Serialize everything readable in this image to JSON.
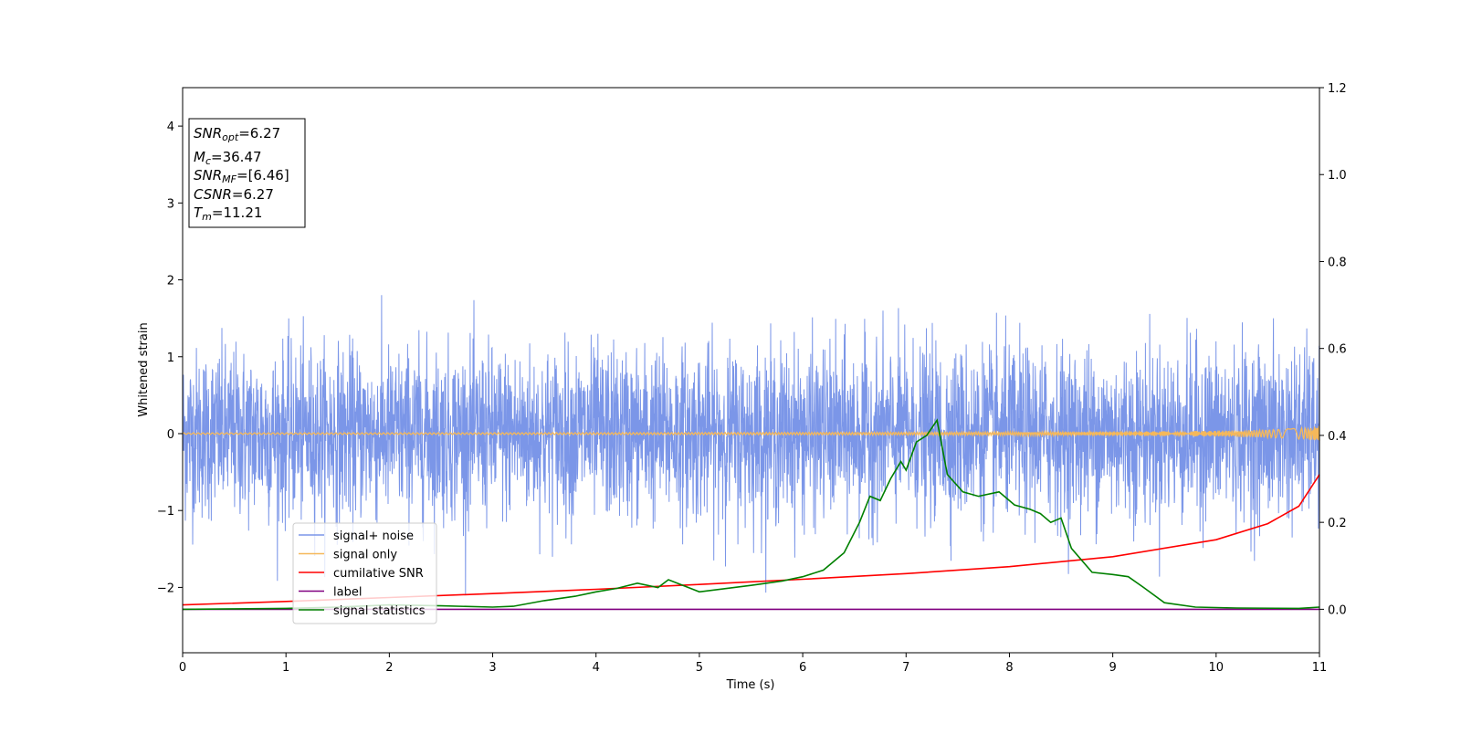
{
  "chart_data": {
    "type": "line",
    "xlabel": "Time (s)",
    "ylabel": "Whitened strain",
    "xlim": [
      0,
      11
    ],
    "ylim": [
      -2.85,
      4.5
    ],
    "y2lim": [
      -0.1,
      1.2
    ],
    "grid": false,
    "legend_position": "lower-left",
    "x_ticks": [
      "0",
      "1",
      "2",
      "3",
      "4",
      "5",
      "6",
      "7",
      "8",
      "9",
      "10",
      "11"
    ],
    "y_ticks": [
      {
        "value": -2,
        "label": "−2"
      },
      {
        "value": -1,
        "label": "−1"
      },
      {
        "value": 0,
        "label": "0"
      },
      {
        "value": 1,
        "label": "1"
      },
      {
        "value": 2,
        "label": "2"
      },
      {
        "value": 3,
        "label": "3"
      },
      {
        "value": 4,
        "label": "4"
      }
    ],
    "y2_ticks": [
      {
        "value": 0.0,
        "label": "0.0"
      },
      {
        "value": 0.2,
        "label": "0.2"
      },
      {
        "value": 0.4,
        "label": "0.4"
      },
      {
        "value": 0.6,
        "label": "0.6"
      },
      {
        "value": 0.8,
        "label": "0.8"
      },
      {
        "value": 1.0,
        "label": "1.0"
      },
      {
        "value": 1.2,
        "label": "1.2"
      }
    ],
    "info_box": {
      "snr_opt": {
        "sym": "SNR",
        "sub": "opt",
        "val": "=6.27"
      },
      "mc": {
        "sym": "M",
        "sub": "c",
        "val": "=36.47"
      },
      "snr_mf": {
        "sym": "SNR",
        "sub": "MF",
        "val": "=[6.46]"
      },
      "csnr": {
        "sym": "CSNR",
        "sub": "",
        "val": "=6.27"
      },
      "tm": {
        "sym": "T",
        "sub": "m",
        "val": "=11.21"
      }
    },
    "series": [
      {
        "name": "signal+ noise",
        "color": "#7b96e8",
        "axis": "left",
        "noise_sigma": 0.55,
        "approx_range": [
          -2.1,
          2.1
        ]
      },
      {
        "name": "signal only",
        "color": "#f5b85a",
        "axis": "left",
        "amplitude_end": 0.1,
        "x_end": 11
      },
      {
        "name": "cumilative SNR",
        "color": "#ff0000",
        "axis": "right",
        "x": [
          0,
          1,
          2,
          3,
          4,
          5,
          6,
          7,
          8,
          9,
          10,
          10.5,
          10.8,
          11
        ],
        "y": [
          0.01,
          0.018,
          0.027,
          0.036,
          0.046,
          0.057,
          0.069,
          0.082,
          0.098,
          0.121,
          0.16,
          0.197,
          0.237,
          0.31
        ]
      },
      {
        "name": "label",
        "color": "#800080",
        "axis": "right",
        "x": [
          0,
          11
        ],
        "y": [
          0,
          0
        ]
      },
      {
        "name": "signal statistics",
        "color": "#008000",
        "axis": "right",
        "x": [
          0,
          0.5,
          1,
          1.5,
          2,
          2.5,
          3,
          3.2,
          3.5,
          3.8,
          4,
          4.2,
          4.4,
          4.6,
          4.7,
          5,
          5.5,
          5.8,
          6,
          6.2,
          6.4,
          6.55,
          6.65,
          6.75,
          6.85,
          6.95,
          7.0,
          7.1,
          7.2,
          7.3,
          7.4,
          7.55,
          7.7,
          7.9,
          8.05,
          8.2,
          8.3,
          8.4,
          8.5,
          8.6,
          8.8,
          9.0,
          9.15,
          9.3,
          9.5,
          9.8,
          10.2,
          10.8,
          11
        ],
        "y": [
          0.0,
          0.001,
          0.002,
          0.005,
          0.01,
          0.008,
          0.005,
          0.007,
          0.02,
          0.03,
          0.04,
          0.048,
          0.06,
          0.05,
          0.068,
          0.04,
          0.055,
          0.065,
          0.075,
          0.09,
          0.13,
          0.2,
          0.26,
          0.25,
          0.3,
          0.34,
          0.32,
          0.385,
          0.4,
          0.435,
          0.31,
          0.27,
          0.26,
          0.27,
          0.24,
          0.23,
          0.22,
          0.2,
          0.21,
          0.14,
          0.085,
          0.08,
          0.075,
          0.05,
          0.015,
          0.005,
          0.003,
          0.002,
          0.005
        ]
      }
    ]
  }
}
